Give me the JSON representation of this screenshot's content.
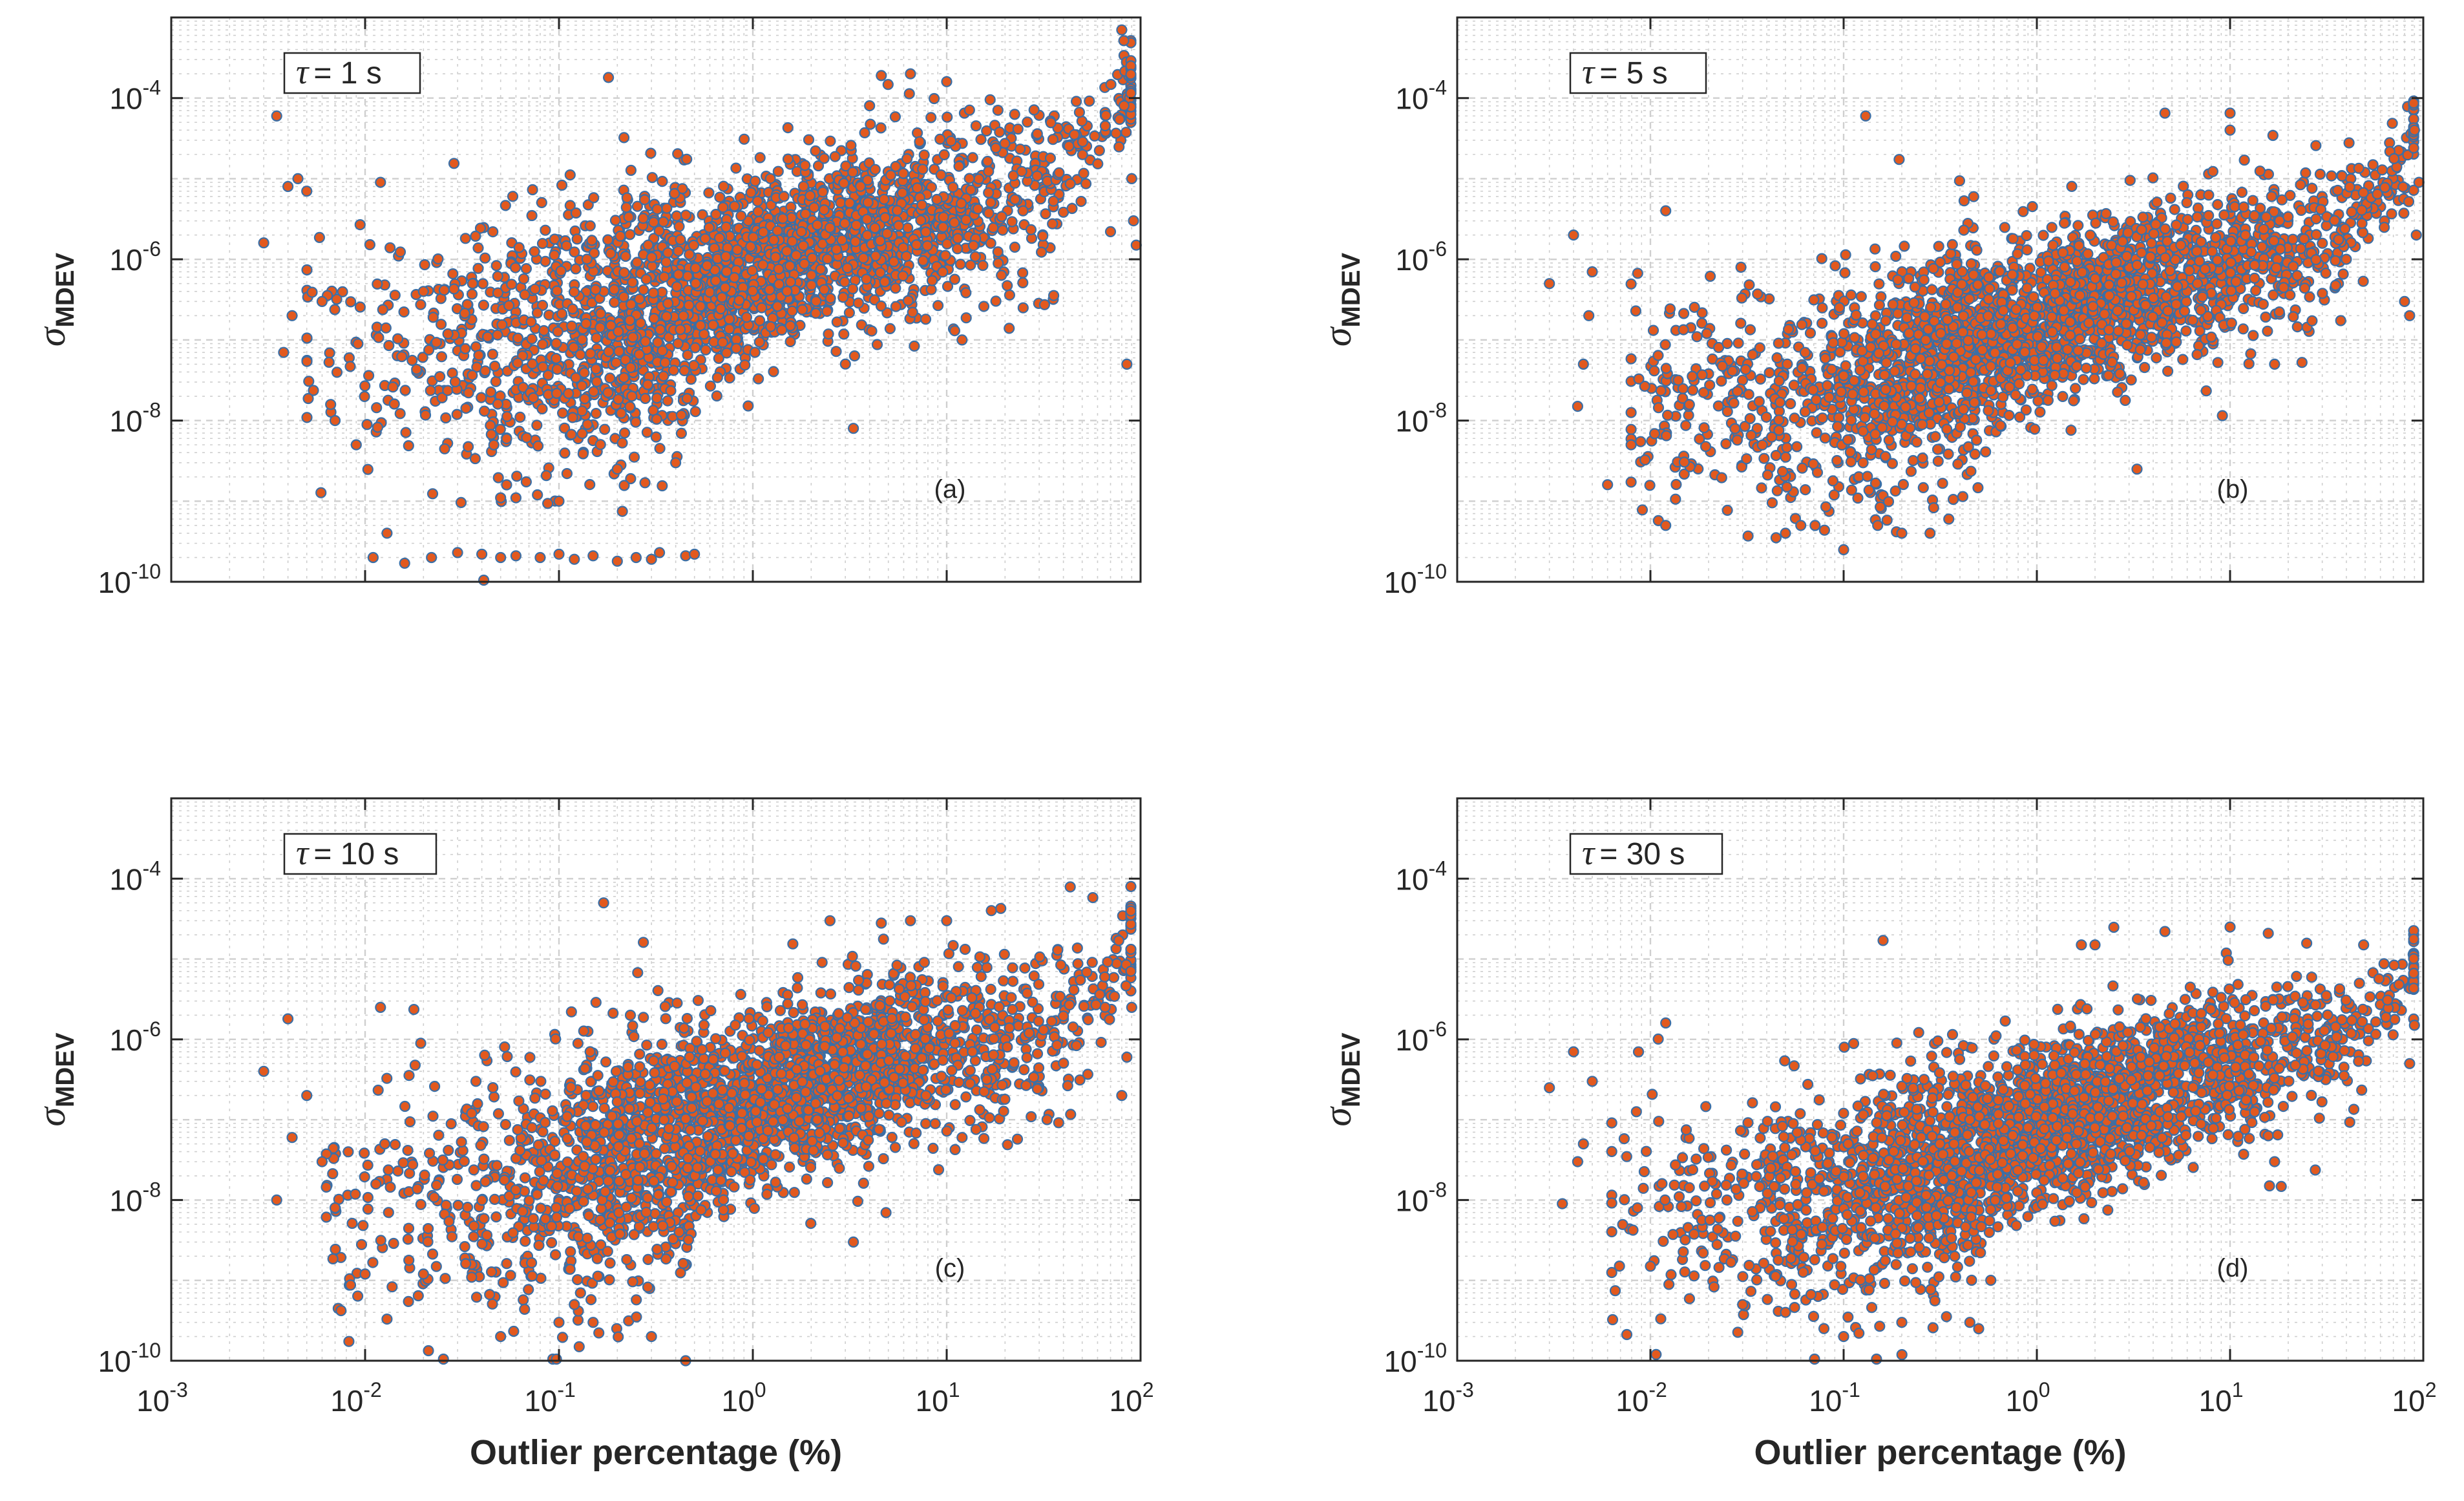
{
  "figure": {
    "colors": {
      "marker_face": "#e2591e",
      "marker_edge": "#3b6fa6",
      "grid": "#cfcfcf",
      "axis": "#262626"
    }
  },
  "chart_data": [
    {
      "type": "scatter",
      "panel": "(a)",
      "tau_label": {
        "symbol": "τ",
        "text": "= 1 s"
      },
      "xlabel": "",
      "ylabel": {
        "symbol": "σ",
        "subscript": "MDEV"
      },
      "xscale": "log",
      "yscale": "log",
      "xlim": [
        0.001,
        100
      ],
      "ylim": [
        1e-10,
        0.001
      ],
      "xticks": [
        {
          "base": "10",
          "exp": "-3"
        },
        {
          "base": "10",
          "exp": "-2"
        },
        {
          "base": "10",
          "exp": "-1"
        },
        {
          "base": "10",
          "exp": "0"
        },
        {
          "base": "10",
          "exp": "1"
        },
        {
          "base": "10",
          "exp": "2"
        }
      ],
      "xtick_labels_visible": false,
      "yticks": [
        {
          "base": "10",
          "exp": "-10"
        },
        {
          "base": "10",
          "exp": "-8"
        },
        {
          "base": "10",
          "exp": "-6"
        },
        {
          "base": "10",
          "exp": "-4"
        }
      ],
      "grid": true,
      "trend": {
        "anchors_logx_logy": [
          [
            -2.3,
            -7.2
          ],
          [
            -1.3,
            -7.1
          ],
          [
            -0.6,
            -6.8
          ],
          [
            0,
            -6.1
          ],
          [
            0.6,
            -5.7
          ],
          [
            1,
            -5.4
          ],
          [
            1.5,
            -5.1
          ],
          [
            1.75,
            -4.6
          ],
          [
            1.95,
            -3.9
          ]
        ],
        "scatter_dex": 0.55,
        "low_x_spread_dex": 0.8,
        "n_points": 2600
      },
      "points": [
        [
          0.003,
          1.6e-06
        ],
        [
          0.0035,
          6e-05
        ],
        [
          0.004,
          8e-06
        ],
        [
          0.0042,
          2e-07
        ],
        [
          0.005,
          7e-06
        ],
        [
          0.006,
          3e-07
        ],
        [
          0.0045,
          1e-05
        ],
        [
          0.0038,
          7e-08
        ],
        [
          0.007,
          1e-08
        ],
        [
          0.009,
          5e-09
        ],
        [
          0.012,
          9e-06
        ],
        [
          0.02,
          4e-07
        ],
        [
          0.18,
          0.00018
        ],
        [
          3.3,
          8e-09
        ],
        [
          4.6,
          0.00019
        ],
        [
          6.5,
          0.0002
        ],
        [
          10,
          0.00016
        ],
        [
          0.011,
          2e-10
        ],
        [
          0.016,
          1.7e-10
        ],
        [
          0.022,
          2e-10
        ],
        [
          0.03,
          2.3e-10
        ],
        [
          0.04,
          2.2e-10
        ],
        [
          0.05,
          2e-10
        ],
        [
          0.06,
          2.1e-10
        ],
        [
          0.08,
          2e-10
        ],
        [
          0.1,
          2.2e-10
        ],
        [
          0.12,
          1.9e-10
        ],
        [
          0.15,
          2.1e-10
        ],
        [
          0.2,
          1.8e-10
        ],
        [
          0.25,
          2e-10
        ],
        [
          0.33,
          2.3e-10
        ],
        [
          0.45,
          2.1e-10
        ],
        [
          0.3,
          1.9e-10
        ],
        [
          0.5,
          2.2e-10
        ],
        [
          0.05,
          1.1e-09
        ],
        [
          0.06,
          1.1e-09
        ],
        [
          0.11,
          2.2e-09
        ],
        [
          0.1,
          1e-09
        ],
        [
          0.2,
          2.5e-09
        ],
        [
          0.4,
          3e-09
        ],
        [
          11,
          1.3e-07
        ],
        [
          12,
          1e-07
        ],
        [
          85,
          5e-08
        ],
        [
          90,
          1e-05
        ],
        [
          95,
          1.5e-06
        ],
        [
          80,
          0.0007
        ],
        [
          92,
          3e-06
        ],
        [
          70,
          2.2e-06
        ]
      ]
    },
    {
      "type": "scatter",
      "panel": "(b)",
      "tau_label": {
        "symbol": "τ",
        "text": "= 5 s"
      },
      "xlabel": "",
      "ylabel": {
        "symbol": "σ",
        "subscript": "MDEV"
      },
      "xscale": "log",
      "yscale": "log",
      "xlim": [
        0.001,
        100
      ],
      "ylim": [
        1e-10,
        0.001
      ],
      "xticks": [
        {
          "base": "10",
          "exp": "-3"
        },
        {
          "base": "10",
          "exp": "-2"
        },
        {
          "base": "10",
          "exp": "-1"
        },
        {
          "base": "10",
          "exp": "0"
        },
        {
          "base": "10",
          "exp": "1"
        },
        {
          "base": "10",
          "exp": "2"
        }
      ],
      "xtick_labels_visible": false,
      "yticks": [
        {
          "base": "10",
          "exp": "-10"
        },
        {
          "base": "10",
          "exp": "-8"
        },
        {
          "base": "10",
          "exp": "-6"
        },
        {
          "base": "10",
          "exp": "-4"
        }
      ],
      "grid": true,
      "trend": {
        "anchors_logx_logy": [
          [
            -2.1,
            -7.6
          ],
          [
            -1.3,
            -7.8
          ],
          [
            -0.7,
            -7.4
          ],
          [
            0,
            -6.8
          ],
          [
            0.6,
            -6.3
          ],
          [
            1,
            -6.1
          ],
          [
            1.5,
            -5.7
          ],
          [
            1.8,
            -5.2
          ],
          [
            1.95,
            -4.4
          ]
        ],
        "scatter_dex": 0.5,
        "low_x_spread_dex": 0.7,
        "n_points": 2600
      },
      "points": [
        [
          0.003,
          5e-07
        ],
        [
          0.004,
          2e-06
        ],
        [
          0.0042,
          1.5e-08
        ],
        [
          0.005,
          7e-07
        ],
        [
          0.006,
          1.6e-09
        ],
        [
          0.0045,
          5e-08
        ],
        [
          0.0048,
          2e-07
        ],
        [
          0.012,
          4e-06
        ],
        [
          0.13,
          6e-05
        ],
        [
          0.15,
          5e-10
        ],
        [
          0.1,
          2.5e-10
        ],
        [
          0.05,
          4e-10
        ],
        [
          0.06,
          5e-10
        ],
        [
          0.2,
          4e-10
        ],
        [
          0.28,
          4e-10
        ],
        [
          0.35,
          6e-10
        ],
        [
          4.6,
          6.5e-05
        ],
        [
          10,
          6.5e-05
        ],
        [
          10,
          4e-05
        ],
        [
          3.3,
          2.5e-09
        ],
        [
          17,
          5e-08
        ],
        [
          90,
          4e-05
        ],
        [
          95,
          9e-06
        ],
        [
          85,
          2e-07
        ],
        [
          80,
          3e-07
        ],
        [
          92,
          2e-06
        ],
        [
          0.012,
          5e-10
        ]
      ]
    },
    {
      "type": "scatter",
      "panel": "(c)",
      "tau_label": {
        "symbol": "τ",
        "text": "= 10 s"
      },
      "xlabel": "Outlier percentage (%)",
      "ylabel": {
        "symbol": "σ",
        "subscript": "MDEV"
      },
      "xscale": "log",
      "yscale": "log",
      "xlim": [
        0.001,
        100
      ],
      "ylim": [
        1e-10,
        0.001
      ],
      "xticks": [
        {
          "base": "10",
          "exp": "-3"
        },
        {
          "base": "10",
          "exp": "-2"
        },
        {
          "base": "10",
          "exp": "-1"
        },
        {
          "base": "10",
          "exp": "0"
        },
        {
          "base": "10",
          "exp": "1"
        },
        {
          "base": "10",
          "exp": "2"
        }
      ],
      "xtick_labels_visible": true,
      "yticks": [
        {
          "base": "10",
          "exp": "-10"
        },
        {
          "base": "10",
          "exp": "-8"
        },
        {
          "base": "10",
          "exp": "-6"
        },
        {
          "base": "10",
          "exp": "-4"
        }
      ],
      "grid": true,
      "trend": {
        "anchors_logx_logy": [
          [
            -2.2,
            -8
          ],
          [
            -1.3,
            -7.9
          ],
          [
            -0.6,
            -7.4
          ],
          [
            0,
            -6.8
          ],
          [
            0.6,
            -6.3
          ],
          [
            1,
            -6.1
          ],
          [
            1.5,
            -5.9
          ],
          [
            1.8,
            -5.5
          ],
          [
            1.95,
            -4.8
          ]
        ],
        "scatter_dex": 0.55,
        "low_x_spread_dex": 0.8,
        "n_points": 2600
      },
      "points": [
        [
          0.003,
          4e-07
        ],
        [
          0.0035,
          1e-08
        ],
        [
          0.004,
          1.8e-06
        ],
        [
          0.0042,
          6e-08
        ],
        [
          0.005,
          2e-07
        ],
        [
          0.006,
          3e-08
        ],
        [
          0.007,
          8e-09
        ],
        [
          0.012,
          2.5e-06
        ],
        [
          0.17,
          5e-05
        ],
        [
          0.45,
          1e-10
        ],
        [
          0.05,
          2e-10
        ],
        [
          0.1,
          3e-10
        ],
        [
          0.12,
          5e-10
        ],
        [
          0.15,
          3e-10
        ],
        [
          0.3,
          2e-10
        ],
        [
          3.3,
          3e-09
        ],
        [
          2.5,
          3e-05
        ],
        [
          4.6,
          2.8e-05
        ],
        [
          6.5,
          3e-05
        ],
        [
          10,
          3e-05
        ],
        [
          17,
          4e-05
        ],
        [
          12,
          6e-08
        ],
        [
          90,
          2.5e-06
        ],
        [
          85,
          6e-07
        ],
        [
          80,
          2e-07
        ],
        [
          0.01,
          1.2e-09
        ],
        [
          0.02,
          1.2e-09
        ]
      ]
    },
    {
      "type": "scatter",
      "panel": "(d)",
      "tau_label": {
        "symbol": "τ",
        "text": "= 30 s"
      },
      "xlabel": "Outlier percentage (%)",
      "ylabel": {
        "symbol": "σ",
        "subscript": "MDEV"
      },
      "xscale": "log",
      "yscale": "log",
      "xlim": [
        0.001,
        100
      ],
      "ylim": [
        1e-10,
        0.001
      ],
      "xticks": [
        {
          "base": "10",
          "exp": "-3"
        },
        {
          "base": "10",
          "exp": "-2"
        },
        {
          "base": "10",
          "exp": "-1"
        },
        {
          "base": "10",
          "exp": "0"
        },
        {
          "base": "10",
          "exp": "1"
        },
        {
          "base": "10",
          "exp": "2"
        }
      ],
      "xtick_labels_visible": true,
      "yticks": [
        {
          "base": "10",
          "exp": "-10"
        },
        {
          "base": "10",
          "exp": "-8"
        },
        {
          "base": "10",
          "exp": "-6"
        },
        {
          "base": "10",
          "exp": "-4"
        }
      ],
      "grid": true,
      "trend": {
        "anchors_logx_logy": [
          [
            -2.2,
            -8
          ],
          [
            -1.3,
            -8
          ],
          [
            -0.6,
            -7.7
          ],
          [
            0,
            -7.1
          ],
          [
            0.6,
            -6.6
          ],
          [
            1,
            -6.3
          ],
          [
            1.5,
            -6.1
          ],
          [
            1.8,
            -5.7
          ],
          [
            1.95,
            -5.1
          ]
        ],
        "scatter_dex": 0.5,
        "low_x_spread_dex": 0.7,
        "n_points": 2600
      },
      "points": [
        [
          0.003,
          2.5e-07
        ],
        [
          0.0035,
          9e-09
        ],
        [
          0.004,
          7e-07
        ],
        [
          0.0042,
          3e-08
        ],
        [
          0.0045,
          5e-08
        ],
        [
          0.005,
          3e-07
        ],
        [
          0.012,
          1.6e-06
        ],
        [
          0.16,
          1.7e-05
        ],
        [
          0.1,
          2e-10
        ],
        [
          0.12,
          2.2e-10
        ],
        [
          0.45,
          3e-10
        ],
        [
          0.5,
          2.5e-10
        ],
        [
          0.05,
          4e-10
        ],
        [
          0.2,
          3e-10
        ],
        [
          1.7,
          1.5e-05
        ],
        [
          2,
          1.5e-05
        ],
        [
          4.6,
          2.2e-05
        ],
        [
          10,
          2.5e-05
        ],
        [
          17,
          3e-08
        ],
        [
          16,
          1.5e-08
        ],
        [
          90,
          1.5e-06
        ],
        [
          85,
          5e-07
        ],
        [
          0.03,
          5e-10
        ],
        [
          0.01,
          1.5e-09
        ]
      ]
    }
  ]
}
